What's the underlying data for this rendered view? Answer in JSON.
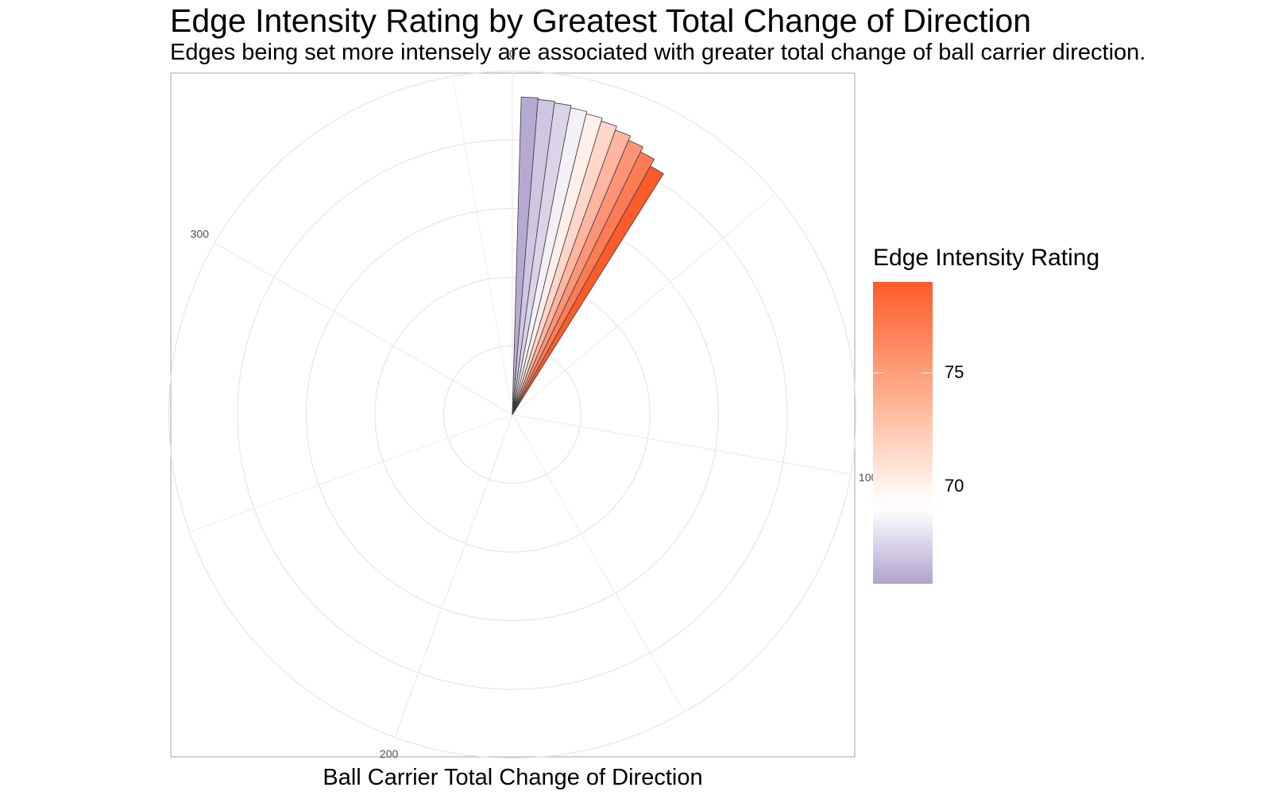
{
  "chart_data": {
    "type": "bar",
    "coordinate_system": "polar",
    "title": "Edge Intensity Rating by Greatest Total Change of Direction",
    "subtitle": "Edges being set more intensely are associated with greater total change of ball carrier direction.",
    "xlabel": "Ball Carrier Total Change of Direction",
    "angle_ticks": [
      0,
      100,
      200,
      300
    ],
    "angle_range": [
      0,
      360
    ],
    "grid": true,
    "values": [
      66,
      67,
      67.5,
      68.5,
      70,
      71.5,
      73.5,
      75.5,
      77,
      79
    ],
    "colorbar": {
      "title": "Edge Intensity Rating",
      "ticks": [
        70,
        75
      ],
      "range": [
        65.7,
        79
      ],
      "low_color": "#b0a1cd",
      "mid_color": "#ffffff",
      "high_color": "#fe5b2a",
      "placement": "right"
    }
  }
}
